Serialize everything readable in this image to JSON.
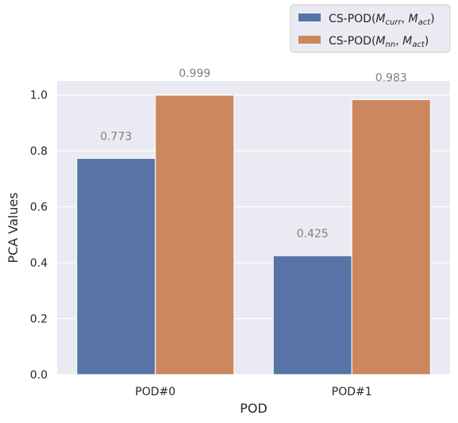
{
  "chart_data": {
    "type": "bar",
    "categories": [
      "POD#0",
      "POD#1"
    ],
    "series": [
      {
        "name": "CS-POD(M_curr, M_act)",
        "color": "#5874a6",
        "values": [
          0.773,
          0.425
        ],
        "labels": [
          "0.773",
          "0.425"
        ]
      },
      {
        "name": "CS-POD(M_nn, M_act)",
        "color": "#cc875f",
        "values": [
          0.999,
          0.983
        ],
        "labels": [
          "0.999",
          "0.983"
        ]
      }
    ],
    "xlabel": "POD",
    "ylabel": "PCA Values",
    "ylim": [
      0,
      1.05
    ],
    "yticks": [
      "0.0",
      "0.2",
      "0.4",
      "0.6",
      "0.8",
      "1.0"
    ],
    "grid": true,
    "legend_position": "top-right, above plot",
    "background_color": "#eaeaf2"
  },
  "legend": {
    "prefix": "CS-POD(",
    "sep": ", ",
    "suffix": ")",
    "entries": [
      {
        "m1": "M",
        "s1": "curr",
        "m2": "M",
        "s2": "act"
      },
      {
        "m1": "M",
        "s1": "nn",
        "m2": "M",
        "s2": "act"
      }
    ]
  }
}
